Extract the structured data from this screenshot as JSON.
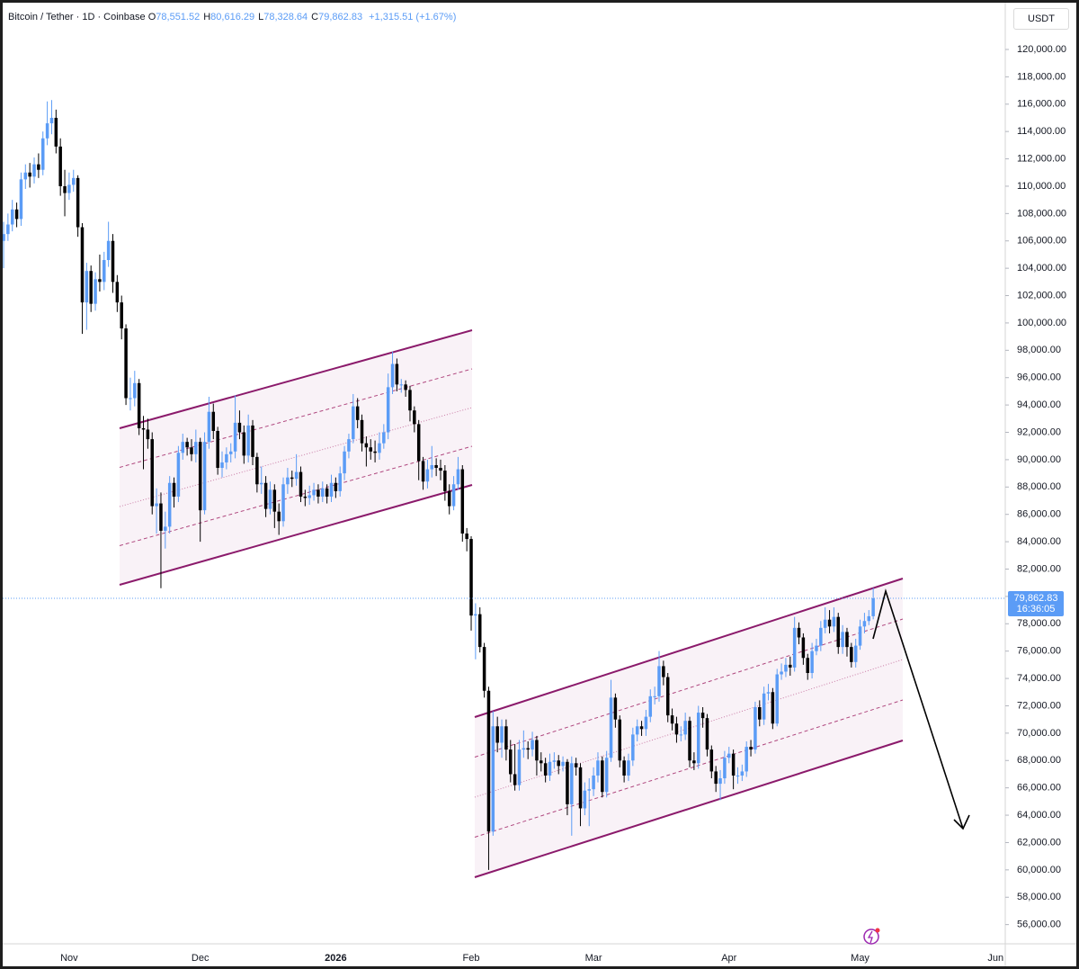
{
  "chart_data": {
    "type": "candlestick",
    "title": "Bitcoin / Tether · 1D · Coinbase",
    "ohlc_legend": [
      {
        "key": "O",
        "value": "78,551.52"
      },
      {
        "key": "H",
        "value": "80,616.29"
      },
      {
        "key": "L",
        "value": "78,328.64"
      },
      {
        "key": "C",
        "value": "79,862.83"
      }
    ],
    "change_label": "+1,315.51 (+1.67%)",
    "currency": "USDT",
    "last_price_label": "79,862.83",
    "countdown": "16:36:05",
    "up_color": "#5b9cf6",
    "down_color": "#000000",
    "grid": false,
    "categories": [
      null,
      null,
      null,
      null,
      null,
      null,
      null,
      null,
      null,
      null,
      null,
      null,
      null,
      null,
      null,
      "Nov",
      null,
      null,
      null,
      null,
      null,
      null,
      null,
      null,
      null,
      null,
      null,
      null,
      null,
      null,
      null,
      null,
      null,
      null,
      null,
      null,
      null,
      null,
      null,
      null,
      null,
      null,
      null,
      null,
      null,
      "Dec",
      null,
      null,
      null,
      null,
      null,
      null,
      null,
      null,
      null,
      null,
      null,
      null,
      null,
      null,
      null,
      null,
      null,
      null,
      null,
      null,
      null,
      null,
      null,
      null,
      null,
      null,
      null,
      null,
      null,
      null,
      "2026",
      null,
      null,
      null,
      null,
      null,
      null,
      null,
      null,
      null,
      null,
      null,
      null,
      null,
      null,
      null,
      null,
      null,
      null,
      null,
      null,
      null,
      null,
      null,
      null,
      null,
      null,
      null,
      null,
      null,
      null,
      "Feb",
      null,
      null,
      null,
      null,
      null,
      null,
      null,
      null,
      null,
      null,
      null,
      null,
      null,
      null,
      null,
      null,
      null,
      null,
      null,
      null,
      null,
      null,
      null,
      null,
      null,
      null,
      null,
      "Mar",
      null,
      null,
      null,
      null,
      null,
      null,
      null,
      null,
      null,
      null,
      null,
      null,
      null,
      null,
      null,
      null,
      null,
      null,
      null,
      null,
      null,
      null,
      null,
      null,
      null,
      null,
      null,
      null,
      null,
      null,
      "Apr",
      null,
      null,
      null,
      null,
      null,
      null,
      null,
      null,
      null,
      null,
      null,
      null,
      null,
      null,
      null,
      null,
      null,
      null,
      null,
      null,
      null,
      null,
      null,
      null,
      null,
      null,
      null,
      null,
      null,
      "May",
      null,
      null,
      null,
      null,
      null,
      null,
      null,
      null,
      null,
      null,
      null,
      null,
      null,
      null,
      null,
      null,
      null,
      null,
      null,
      null,
      null,
      null,
      null,
      null,
      null,
      null,
      null,
      null,
      null,
      null,
      "Jun"
    ],
    "open": [
      106000,
      106500,
      107200,
      108300,
      107600,
      110500,
      111000,
      110700,
      111600,
      111200,
      113500,
      114600,
      115000,
      112900,
      110000,
      109500,
      110100,
      110600,
      107000,
      101500,
      103800,
      101400,
      103200,
      103000,
      104600,
      106000,
      103000,
      101500,
      99600,
      94500,
      94500,
      95600,
      92300,
      92200,
      91500,
      86600,
      86800,
      84800,
      85100,
      88300,
      87300,
      90500,
      91300,
      90900,
      90400,
      91300,
      86300,
      91300,
      93500,
      92100,
      89400,
      89800,
      90400,
      90600,
      92700,
      92000,
      90300,
      92500,
      90200,
      88200,
      88300,
      86400,
      87800,
      86200,
      85500,
      88200,
      88700,
      88600,
      89100,
      87300,
      87200,
      87400,
      87800,
      87300,
      87900,
      87300,
      88300,
      87700,
      89000,
      90600,
      91500,
      93900,
      92900,
      91200,
      90900,
      90600,
      90500,
      91200,
      92000,
      95300,
      97000,
      95500,
      95500,
      95100,
      93600,
      92600,
      89900,
      88400,
      89300,
      89600,
      89400,
      89200,
      87700,
      86600,
      88200,
      89300,
      84600,
      84200,
      78600,
      78700,
      76300,
      73100,
      62800,
      70500,
      69300,
      70500,
      68800,
      67000,
      66200,
      68800,
      68900,
      68800,
      69500,
      68000,
      67800,
      66900,
      67900,
      68000,
      67600,
      67900,
      64800,
      67800,
      67500,
      64500,
      65800,
      65900,
      66900,
      68000,
      65700,
      68200,
      72600,
      71000,
      68000,
      66900,
      68000,
      69900,
      70500,
      70300,
      71200,
      72700,
      72700,
      74900,
      74100,
      71300,
      70700,
      69900,
      69900,
      70900,
      68000,
      67800,
      71500,
      71100,
      68800,
      67200,
      66300,
      66700,
      68200,
      68500,
      66900,
      66900,
      67200,
      69000,
      68800,
      71900,
      71000,
      72900,
      73000,
      70700,
      74300,
      74500,
      75000,
      74800,
      77700,
      77000,
      75500,
      74400,
      76000,
      76400,
      77700,
      78300,
      77800,
      78500,
      76300,
      77400,
      76300,
      75200,
      76400,
      77800,
      78200,
      78551.52,
      null,
      null,
      null,
      null,
      null,
      null,
      null,
      null,
      null,
      null,
      null,
      null,
      null,
      null,
      null,
      null,
      null,
      null,
      null,
      null,
      null,
      null,
      null,
      null,
      null,
      null,
      null,
      null
    ],
    "high": [
      107400,
      108000,
      109000,
      108800,
      111000,
      111600,
      111700,
      112100,
      112400,
      114000,
      116200,
      116300,
      115600,
      113500,
      111200,
      111000,
      111200,
      110800,
      107300,
      104400,
      104200,
      103700,
      105000,
      105200,
      107400,
      106500,
      103500,
      102000,
      99900,
      96000,
      96500,
      95900,
      93200,
      93000,
      92000,
      87900,
      87600,
      86200,
      88800,
      88700,
      91000,
      91900,
      91600,
      91500,
      92200,
      91600,
      92000,
      94600,
      94100,
      92400,
      90600,
      90900,
      91200,
      94700,
      93600,
      92500,
      93300,
      92900,
      90500,
      89500,
      88800,
      88400,
      88200,
      86800,
      88700,
      89400,
      89200,
      90400,
      89500,
      87800,
      88100,
      88300,
      88200,
      88400,
      88200,
      88900,
      88700,
      89500,
      91000,
      91900,
      94800,
      94500,
      93300,
      91700,
      91500,
      91400,
      92000,
      92600,
      96300,
      97900,
      97400,
      95900,
      95800,
      95400,
      93900,
      92900,
      90200,
      90000,
      91000,
      90100,
      90000,
      89600,
      88200,
      88800,
      90200,
      89600,
      85000,
      84400,
      79500,
      79200,
      76600,
      73400,
      71600,
      71200,
      71000,
      71000,
      69500,
      69200,
      69500,
      70200,
      69400,
      70100,
      69800,
      68600,
      68200,
      68500,
      68600,
      68400,
      68300,
      68100,
      68300,
      68200,
      67800,
      66400,
      66700,
      67500,
      68600,
      68300,
      68700,
      73900,
      72900,
      71300,
      68300,
      68500,
      70400,
      71000,
      70900,
      71700,
      73200,
      73400,
      76000,
      75300,
      74400,
      71800,
      71200,
      70500,
      71500,
      71200,
      68600,
      72000,
      71900,
      71400,
      69100,
      67600,
      67300,
      68700,
      69000,
      68800,
      67500,
      67700,
      69400,
      69500,
      72300,
      72400,
      73400,
      73600,
      73300,
      74700,
      75100,
      75500,
      75600,
      78500,
      78100,
      77300,
      75800,
      76600,
      76900,
      78200,
      79200,
      79000,
      79200,
      78800,
      77900,
      77700,
      76600,
      76900,
      78300,
      78800,
      79000,
      80616.29,
      null,
      null,
      null,
      null,
      null,
      null,
      null,
      null,
      null,
      null,
      null,
      null,
      null,
      null,
      null,
      null,
      null,
      null,
      null,
      null,
      null,
      null,
      null,
      null,
      null,
      null,
      null,
      null
    ],
    "low": [
      104000,
      106000,
      106700,
      107000,
      107100,
      109800,
      109900,
      110200,
      110600,
      110800,
      113000,
      113800,
      112400,
      109300,
      107800,
      109000,
      109600,
      106300,
      99200,
      99500,
      100800,
      100900,
      102300,
      102400,
      104100,
      102200,
      100800,
      98800,
      94000,
      93600,
      93900,
      91800,
      89300,
      90800,
      86000,
      84600,
      80600,
      83500,
      84600,
      86500,
      86900,
      90000,
      90300,
      89900,
      89800,
      84000,
      86000,
      90800,
      91500,
      88900,
      88700,
      89300,
      89800,
      90100,
      91500,
      89700,
      89800,
      89600,
      87600,
      87500,
      85800,
      86000,
      85000,
      84500,
      85100,
      87500,
      88000,
      88100,
      86900,
      86600,
      86700,
      87000,
      86800,
      86900,
      86800,
      86900,
      87200,
      87300,
      88500,
      90100,
      91200,
      92300,
      90600,
      89500,
      90000,
      89800,
      90000,
      90800,
      91500,
      94800,
      95000,
      94900,
      94600,
      92800,
      92000,
      88500,
      87800,
      87900,
      88700,
      88800,
      88500,
      87000,
      86000,
      86300,
      87800,
      84000,
      83300,
      77500,
      75400,
      75900,
      72600,
      60000,
      62500,
      68600,
      68200,
      68000,
      66400,
      65800,
      65800,
      68200,
      68100,
      68300,
      66900,
      67200,
      66400,
      66500,
      67400,
      67000,
      67200,
      64000,
      62500,
      66900,
      63200,
      64000,
      63200,
      65400,
      66400,
      65300,
      65300,
      67900,
      70400,
      67500,
      66400,
      66500,
      67600,
      69400,
      69800,
      69800,
      70800,
      72100,
      72300,
      73500,
      70800,
      70200,
      69300,
      69400,
      69500,
      67500,
      67300,
      67400,
      70400,
      68300,
      66700,
      65700,
      65100,
      66300,
      67800,
      65900,
      66300,
      66500,
      66800,
      68300,
      68500,
      70500,
      70600,
      72400,
      70300,
      70500,
      73900,
      74100,
      74200,
      74500,
      76500,
      75000,
      73900,
      74000,
      75700,
      76000,
      77300,
      77300,
      77400,
      75800,
      75800,
      75600,
      74800,
      74800,
      76100,
      77300,
      77900,
      78328.64,
      null,
      null,
      null,
      null,
      null,
      null,
      null,
      null,
      null,
      null,
      null,
      null,
      null,
      null,
      null,
      null,
      null,
      null,
      null,
      null,
      null,
      null,
      null,
      null,
      null,
      null,
      null,
      null
    ],
    "close": [
      106500,
      107200,
      108300,
      107600,
      110500,
      111000,
      110700,
      111600,
      111200,
      113500,
      114600,
      115000,
      112900,
      110000,
      109500,
      110100,
      110600,
      107000,
      101500,
      103800,
      101400,
      103200,
      103000,
      104600,
      106000,
      103000,
      101500,
      99600,
      94500,
      94500,
      95600,
      92300,
      92200,
      91500,
      86600,
      86800,
      84800,
      85100,
      88300,
      87300,
      90500,
      91300,
      90900,
      90400,
      91300,
      86300,
      91300,
      93500,
      92100,
      89400,
      89800,
      90400,
      90600,
      92700,
      92000,
      90300,
      92500,
      90200,
      88200,
      88300,
      86400,
      87800,
      86200,
      85500,
      88200,
      88700,
      88600,
      89100,
      87300,
      87200,
      87400,
      87800,
      87300,
      87900,
      87300,
      88300,
      87700,
      89000,
      90600,
      91500,
      93900,
      92900,
      91200,
      90900,
      90600,
      90500,
      91200,
      92000,
      95300,
      97000,
      95500,
      95500,
      95100,
      93600,
      92600,
      89900,
      88400,
      89300,
      89600,
      89400,
      89200,
      87700,
      86600,
      88200,
      89300,
      84600,
      84200,
      78600,
      78700,
      76300,
      73100,
      62800,
      70500,
      69300,
      70500,
      68800,
      67000,
      66200,
      68800,
      68900,
      68800,
      69500,
      68000,
      67800,
      66900,
      67900,
      68000,
      67600,
      67900,
      64800,
      67800,
      67500,
      64500,
      65800,
      65900,
      66900,
      68000,
      65700,
      68200,
      72600,
      71000,
      68000,
      66900,
      68000,
      69900,
      70500,
      70300,
      71200,
      72700,
      72700,
      74900,
      74100,
      71300,
      70700,
      69900,
      69900,
      70900,
      68000,
      67800,
      71500,
      71100,
      68800,
      67200,
      66300,
      66700,
      68200,
      68500,
      66900,
      66900,
      67200,
      69000,
      68800,
      71900,
      71000,
      72900,
      73000,
      70700,
      74300,
      74500,
      75000,
      74800,
      77700,
      77000,
      75500,
      74400,
      76000,
      76400,
      77700,
      78300,
      77800,
      78500,
      76300,
      77400,
      76300,
      75200,
      76400,
      77800,
      78200,
      78551.52,
      79862.83,
      null,
      null,
      null,
      null,
      null,
      null,
      null,
      null,
      null,
      null,
      null,
      null,
      null,
      null,
      null,
      null,
      null,
      null,
      null,
      null,
      null,
      null,
      null,
      null,
      null,
      null,
      null,
      null
    ],
    "ylim": [
      54660,
      123420
    ],
    "yticks": [
      {
        "value": 56000,
        "label": "56,000.00"
      },
      {
        "value": 58000,
        "label": "58,000.00"
      },
      {
        "value": 60000,
        "label": "60,000.00"
      },
      {
        "value": 62000,
        "label": "62,000.00"
      },
      {
        "value": 64000,
        "label": "64,000.00"
      },
      {
        "value": 66000,
        "label": "66,000.00"
      },
      {
        "value": 68000,
        "label": "68,000.00"
      },
      {
        "value": 70000,
        "label": "70,000.00"
      },
      {
        "value": 72000,
        "label": "72,000.00"
      },
      {
        "value": 74000,
        "label": "74,000.00"
      },
      {
        "value": 76000,
        "label": "76,000.00"
      },
      {
        "value": 78000,
        "label": "78,000.00"
      },
      {
        "value": 80000,
        "label": "80,000.00"
      },
      {
        "value": 82000,
        "label": "82,000.00"
      },
      {
        "value": 84000,
        "label": "84,000.00"
      },
      {
        "value": 86000,
        "label": "86,000.00"
      },
      {
        "value": 88000,
        "label": "88,000.00"
      },
      {
        "value": 90000,
        "label": "90,000.00"
      },
      {
        "value": 92000,
        "label": "92,000.00"
      },
      {
        "value": 94000,
        "label": "94,000.00"
      },
      {
        "value": 96000,
        "label": "96,000.00"
      },
      {
        "value": 98000,
        "label": "98,000.00"
      },
      {
        "value": 100000,
        "label": "100,000.00"
      },
      {
        "value": 102000,
        "label": "102,000.00"
      },
      {
        "value": 104000,
        "label": "104,000.00"
      },
      {
        "value": 106000,
        "label": "106,000.00"
      },
      {
        "value": 108000,
        "label": "108,000.00"
      },
      {
        "value": 110000,
        "label": "110,000.00"
      },
      {
        "value": 112000,
        "label": "112,000.00"
      },
      {
        "value": 114000,
        "label": "114,000.00"
      },
      {
        "value": 116000,
        "label": "116,000.00"
      },
      {
        "value": 118000,
        "label": "118,000.00"
      },
      {
        "value": 120000,
        "label": "120,000.00"
      }
    ]
  }
}
